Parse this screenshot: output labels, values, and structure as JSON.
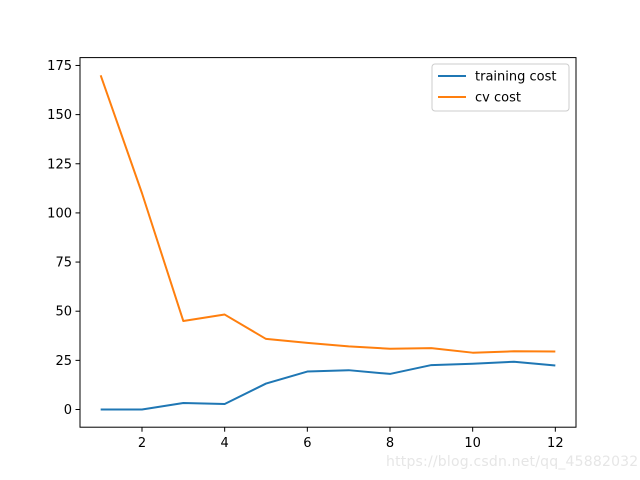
{
  "chart_data": {
    "type": "line",
    "title": "",
    "xlabel": "",
    "ylabel": "",
    "xlim": [
      0.5,
      12.5
    ],
    "ylim": [
      -9,
      179
    ],
    "xticks": [
      2,
      4,
      6,
      8,
      10,
      12
    ],
    "yticks": [
      0,
      25,
      50,
      75,
      100,
      125,
      150,
      175
    ],
    "grid": false,
    "legend_position": "top-right",
    "series": [
      {
        "name": "training cost",
        "color": "#1f77b4",
        "x": [
          1,
          2,
          3,
          4,
          5,
          6,
          7,
          8,
          9,
          10,
          11,
          12
        ],
        "y": [
          0.0,
          0.0,
          3.3,
          2.8,
          13.2,
          19.3,
          20.0,
          18.1,
          22.6,
          23.3,
          24.3,
          22.4
        ]
      },
      {
        "name": "cv cost",
        "color": "#ff7f0e",
        "x": [
          1,
          2,
          3,
          4,
          5,
          6,
          7,
          8,
          9,
          10,
          11,
          12
        ],
        "y": [
          170.0,
          110.0,
          45.0,
          48.3,
          35.9,
          33.9,
          32.1,
          30.9,
          31.2,
          28.9,
          29.6,
          29.5
        ]
      }
    ]
  },
  "watermark": "https://blog.csdn.net/qq_45882032"
}
